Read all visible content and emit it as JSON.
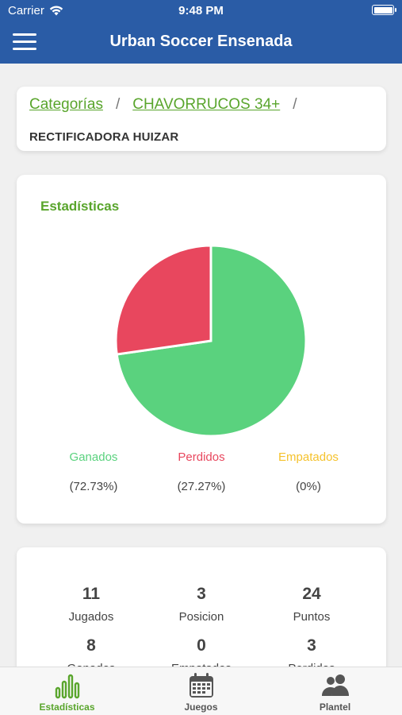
{
  "status": {
    "carrier": "Carrier",
    "time": "9:48 PM"
  },
  "header": {
    "title": "Urban Soccer Ensenada"
  },
  "breadcrumb": {
    "items": [
      "Categorías",
      "CHAVORRUCOS 34+"
    ],
    "separator": "/",
    "team": "RECTIFICADORA HUIZAR"
  },
  "stats": {
    "title": "Estadísticas",
    "legend": [
      {
        "label": "Ganados",
        "percent": "(72.73%)",
        "color": "#5ad27e"
      },
      {
        "label": "Perdidos",
        "percent": "(27.27%)",
        "color": "#e8475e"
      },
      {
        "label": "Empatados",
        "percent": "(0%)",
        "color": "#f5c22c"
      }
    ]
  },
  "chart_data": {
    "type": "pie",
    "categories": [
      "Ganados",
      "Perdidos",
      "Empatados"
    ],
    "values": [
      72.73,
      27.27,
      0
    ],
    "colors": [
      "#5ad27e",
      "#e8475e",
      "#f5c22c"
    ],
    "title": "Estadísticas"
  },
  "summary": {
    "items": [
      {
        "value": "11",
        "label": "Jugados"
      },
      {
        "value": "3",
        "label": "Posicion"
      },
      {
        "value": "24",
        "label": "Puntos"
      },
      {
        "value": "8",
        "label": "Ganados"
      },
      {
        "value": "0",
        "label": "Empatados"
      },
      {
        "value": "3",
        "label": "Perdidos"
      }
    ]
  },
  "tabs": [
    {
      "label": "Estadísticas",
      "icon": "bar-chart-icon",
      "active": true
    },
    {
      "label": "Juegos",
      "icon": "calendar-icon",
      "active": false
    },
    {
      "label": "Plantel",
      "icon": "people-icon",
      "active": false
    }
  ],
  "colors": {
    "primary": "#2a5ca6",
    "accent": "#59a52c",
    "inactive": "#555555"
  }
}
